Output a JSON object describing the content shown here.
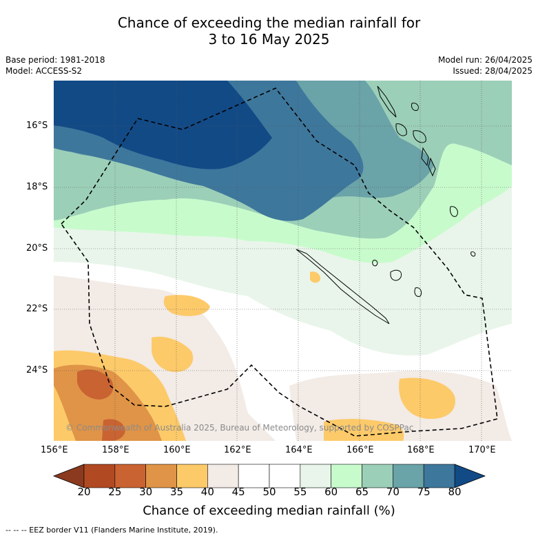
{
  "title_line1": "Chance of exceeding the median rainfall for",
  "title_line2": "3 to 16 May 2025",
  "meta_left": {
    "base_period": "Base period: 1981-2018",
    "model": "Model: ACCESS-S2"
  },
  "meta_right": {
    "model_run": "Model run: 26/04/2025",
    "issued": "Issued: 28/04/2025"
  },
  "latitude_labels": [
    "16°S",
    "18°S",
    "20°S",
    "22°S",
    "24°S"
  ],
  "longitude_labels": [
    "156°E",
    "158°E",
    "160°E",
    "162°E",
    "164°E",
    "166°E",
    "168°E",
    "170°E"
  ],
  "copyright": "© Commonwealth of Australia 2025, Bureau of Meteorology, supported by COSPPac",
  "colorbar": {
    "title": "Chance of exceeding median rainfall (%)",
    "ticks": [
      "20",
      "25",
      "30",
      "35",
      "40",
      "45",
      "50",
      "55",
      "60",
      "65",
      "70",
      "75",
      "80"
    ],
    "colors": [
      "#8b3a1f",
      "#b14a22",
      "#c96332",
      "#e09447",
      "#fdca6a",
      "#f2ebe6",
      "#ffffff",
      "#ffffff",
      "#e9f5ea",
      "#c8fbcc",
      "#9ccfb8",
      "#6aa3a8",
      "#3e779c",
      "#124a86"
    ]
  },
  "footnote": "--  --  -- EEZ border V11 (Flanders Marine Institute, 2019)."
}
